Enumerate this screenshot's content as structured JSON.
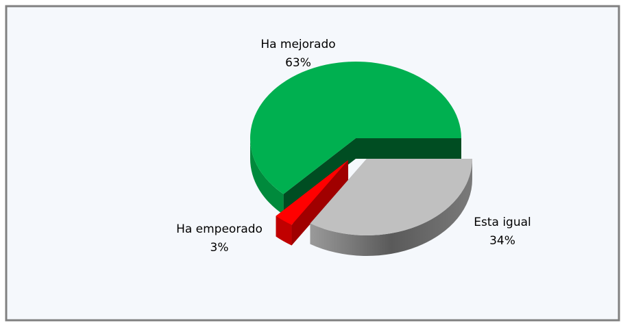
{
  "chart_data": {
    "type": "pie",
    "categories": [
      "Esta igual",
      "Ha empeorado",
      "Ha mejorado"
    ],
    "values": [
      34,
      3,
      63
    ],
    "value_labels": [
      "34%",
      "3%",
      "63%"
    ],
    "colors": [
      "#c0c0c0",
      "#ff0000",
      "#00b050"
    ],
    "three_d": true
  }
}
